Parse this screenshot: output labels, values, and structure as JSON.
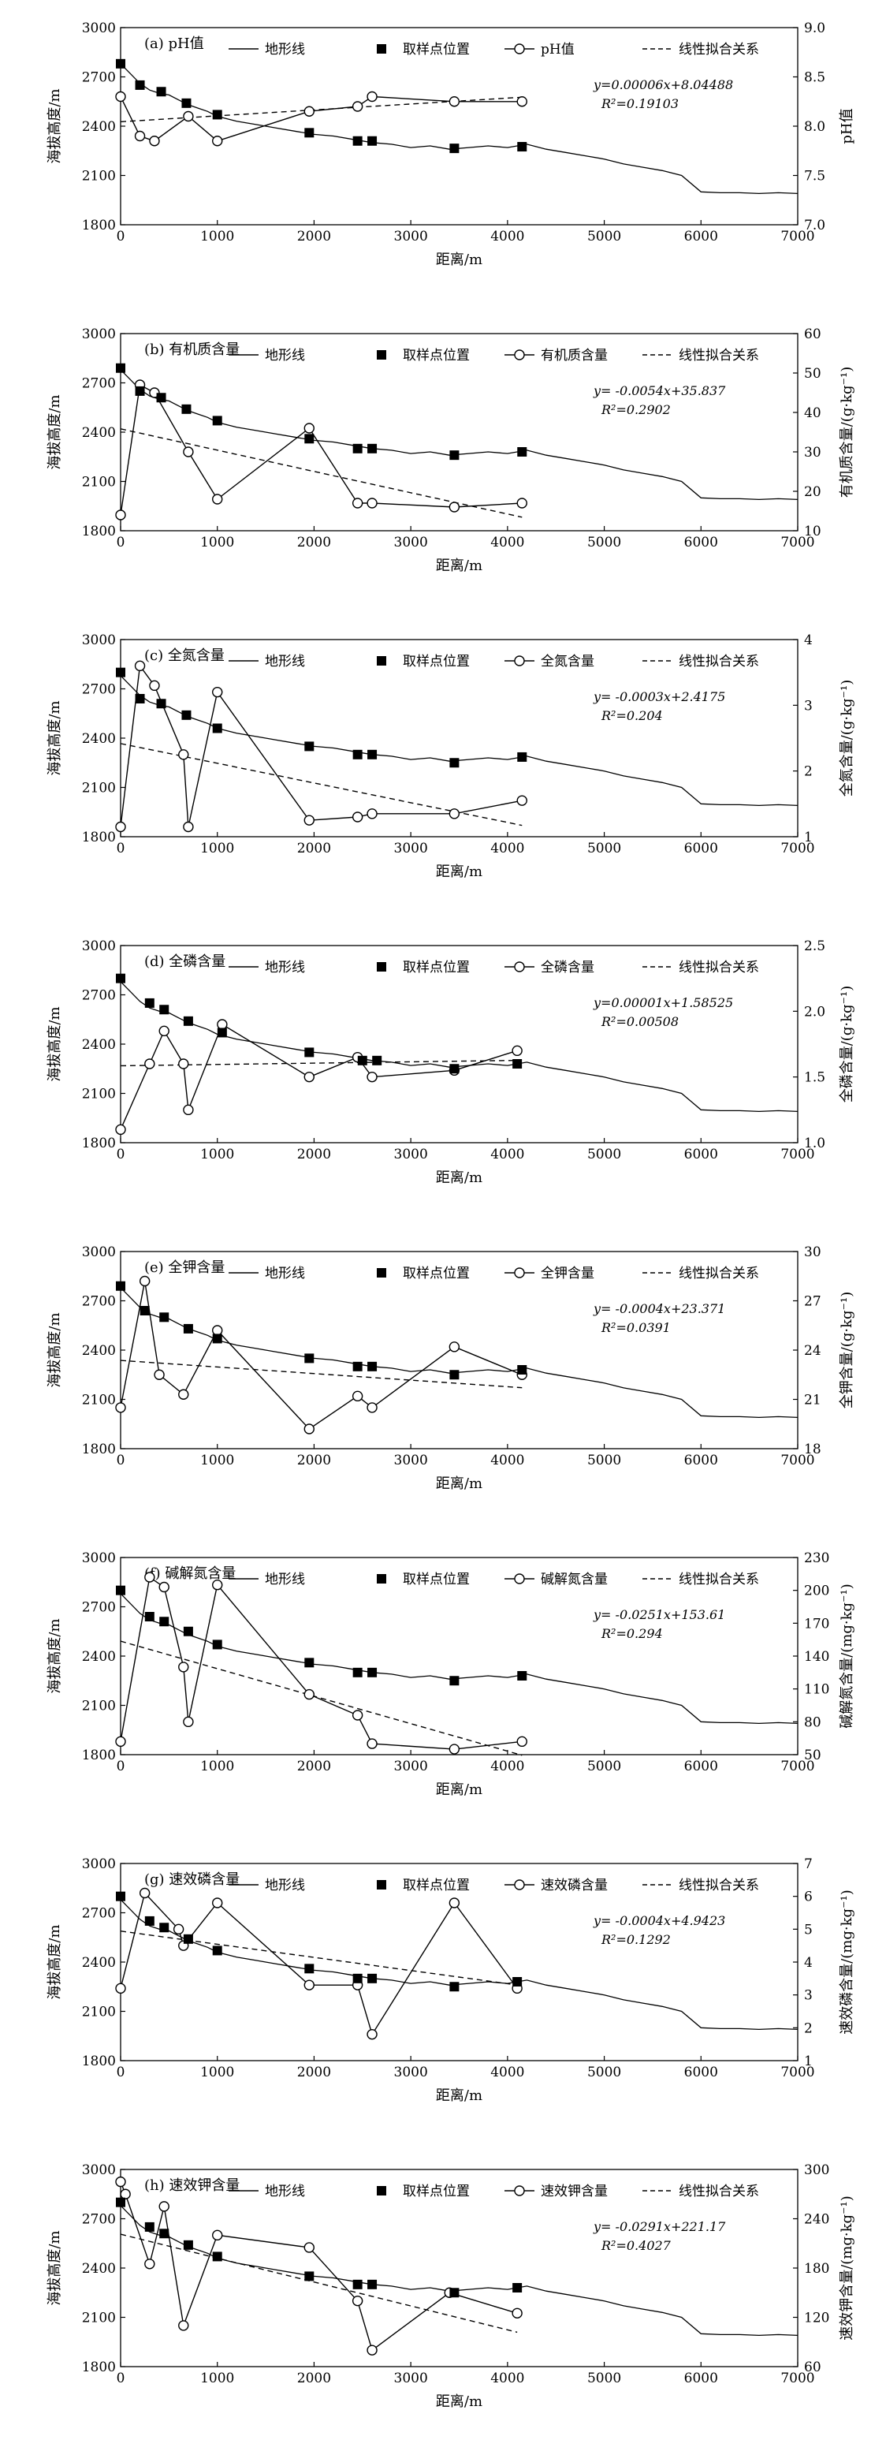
{
  "chart_data": [
    {
      "type": "line",
      "title": "(a) pH值",
      "xlabel": "距离/m",
      "ylabel_left": "海拔高度/m",
      "ylabel_right": "pH值",
      "xlim": [
        0,
        7000
      ],
      "xticks": [
        0,
        1000,
        2000,
        3000,
        4000,
        5000,
        6000,
        7000
      ],
      "ylim_left": [
        1800,
        3000
      ],
      "yticks_left": [
        1800,
        2100,
        2400,
        2700,
        3000
      ],
      "ylim_right": [
        7.0,
        9.0
      ],
      "yticks_right": [
        "7.0",
        "7.5",
        "8.0",
        "8.5",
        "9.0"
      ],
      "legend": [
        "地形线",
        "取样点位置",
        "pH值",
        "线性拟合关系"
      ],
      "equation": "y=0.00006x+8.04488",
      "r2": "R²=0.19103",
      "sampling_points": {
        "x": [
          0,
          200,
          420,
          680,
          1000,
          1950,
          2450,
          2600,
          3450,
          4150
        ],
        "y": [
          2780,
          2650,
          2610,
          2540,
          2470,
          2360,
          2310,
          2310,
          2265,
          2275
        ]
      },
      "measured": {
        "x": [
          0,
          200,
          350,
          700,
          1000,
          1950,
          2450,
          2600,
          3450,
          4150
        ],
        "y": [
          8.3,
          7.9,
          7.85,
          8.1,
          7.85,
          8.15,
          8.2,
          8.3,
          8.25,
          8.25
        ]
      },
      "fit": {
        "x": [
          0,
          4150
        ],
        "y": [
          8.04488,
          8.29388
        ]
      }
    },
    {
      "type": "line",
      "title": "(b) 有机质含量",
      "xlabel": "距离/m",
      "ylabel_left": "海拔高度/m",
      "ylabel_right": "有机质含量/(g·kg⁻¹)",
      "xlim": [
        0,
        7000
      ],
      "xticks": [
        0,
        1000,
        2000,
        3000,
        4000,
        5000,
        6000,
        7000
      ],
      "ylim_left": [
        1800,
        3000
      ],
      "yticks_left": [
        1800,
        2100,
        2400,
        2700,
        3000
      ],
      "ylim_right": [
        10,
        60
      ],
      "yticks_right": [
        "10",
        "20",
        "30",
        "40",
        "50",
        "60"
      ],
      "legend": [
        "地形线",
        "取样点位置",
        "有机质含量",
        "线性拟合关系"
      ],
      "equation": "y= -0.0054x+35.837",
      "r2": "R²=0.2902",
      "sampling_points": {
        "x": [
          0,
          200,
          420,
          680,
          1000,
          1950,
          2450,
          2600,
          3450,
          4150
        ],
        "y": [
          2790,
          2650,
          2610,
          2540,
          2470,
          2360,
          2300,
          2300,
          2260,
          2280
        ]
      },
      "measured": {
        "x": [
          0,
          200,
          350,
          700,
          1000,
          1950,
          2450,
          2600,
          3450,
          4150
        ],
        "y": [
          14,
          47,
          45,
          30,
          18,
          36,
          17,
          17,
          16,
          17
        ]
      },
      "fit": {
        "x": [
          0,
          4150
        ],
        "y": [
          35.837,
          13.427
        ]
      }
    },
    {
      "type": "line",
      "title": "(c) 全氮含量",
      "xlabel": "距离/m",
      "ylabel_left": "海拔高度/m",
      "ylabel_right": "全氮含量/(g·kg⁻¹)",
      "xlim": [
        0,
        7000
      ],
      "xticks": [
        0,
        1000,
        2000,
        3000,
        4000,
        5000,
        6000,
        7000
      ],
      "ylim_left": [
        1800,
        3000
      ],
      "yticks_left": [
        1800,
        2100,
        2400,
        2700,
        3000
      ],
      "ylim_right": [
        1,
        4
      ],
      "yticks_right": [
        "1",
        "2",
        "3",
        "4"
      ],
      "legend": [
        "地形线",
        "取样点位置",
        "全氮含量",
        "线性拟合关系"
      ],
      "equation": "y= -0.0003x+2.4175",
      "r2": "R²=0.204",
      "sampling_points": {
        "x": [
          0,
          200,
          420,
          680,
          1000,
          1950,
          2450,
          2600,
          3450,
          4150
        ],
        "y": [
          2800,
          2640,
          2610,
          2540,
          2460,
          2350,
          2300,
          2300,
          2250,
          2285
        ]
      },
      "measured": {
        "x": [
          0,
          200,
          350,
          650,
          700,
          1000,
          1950,
          2450,
          2600,
          3450,
          4150
        ],
        "y": [
          1.15,
          3.6,
          3.3,
          2.25,
          1.15,
          3.2,
          1.25,
          1.3,
          1.35,
          1.35,
          1.55
        ]
      },
      "fit": {
        "x": [
          0,
          4150
        ],
        "y": [
          2.4175,
          1.1725
        ]
      }
    },
    {
      "type": "line",
      "title": "(d) 全磷含量",
      "xlabel": "距离/m",
      "ylabel_left": "海拔高度/m",
      "ylabel_right": "全磷含量/(g·kg⁻¹)",
      "xlim": [
        0,
        7000
      ],
      "xticks": [
        0,
        1000,
        2000,
        3000,
        4000,
        5000,
        6000,
        7000
      ],
      "ylim_left": [
        1800,
        3000
      ],
      "yticks_left": [
        1800,
        2100,
        2400,
        2700,
        3000
      ],
      "ylim_right": [
        1.0,
        2.5
      ],
      "yticks_right": [
        "1.0",
        "1.5",
        "2.0",
        "2.5"
      ],
      "legend": [
        "地形线",
        "取样点位置",
        "全磷含量",
        "线性拟合关系"
      ],
      "equation": "y=0.00001x+1.58525",
      "r2": "R²=0.00508",
      "sampling_points": {
        "x": [
          0,
          300,
          450,
          700,
          1050,
          1950,
          2500,
          2650,
          3450,
          4100
        ],
        "y": [
          2800,
          2650,
          2610,
          2540,
          2470,
          2350,
          2300,
          2300,
          2250,
          2280
        ]
      },
      "measured": {
        "x": [
          0,
          300,
          450,
          650,
          700,
          1050,
          1950,
          2450,
          2600,
          3450,
          4100
        ],
        "y": [
          1.1,
          1.6,
          1.85,
          1.6,
          1.25,
          1.9,
          1.5,
          1.65,
          1.5,
          1.55,
          1.7
        ]
      },
      "fit": {
        "x": [
          0,
          4100
        ],
        "y": [
          1.58525,
          1.62625
        ]
      }
    },
    {
      "type": "line",
      "title": "(e) 全钾含量",
      "xlabel": "距离/m",
      "ylabel_left": "海拔高度/m",
      "ylabel_right": "全钾含量/(g·kg⁻¹)",
      "xlim": [
        0,
        7000
      ],
      "xticks": [
        0,
        1000,
        2000,
        3000,
        4000,
        5000,
        6000,
        7000
      ],
      "ylim_left": [
        1800,
        3000
      ],
      "yticks_left": [
        1800,
        2100,
        2400,
        2700,
        3000
      ],
      "ylim_right": [
        18,
        30
      ],
      "yticks_right": [
        "18",
        "21",
        "24",
        "27",
        "30"
      ],
      "legend": [
        "地形线",
        "取样点位置",
        "全钾含量",
        "线性拟合关系"
      ],
      "equation": "y= -0.0004x+23.371",
      "r2": "R²=0.0391",
      "sampling_points": {
        "x": [
          0,
          250,
          450,
          700,
          1000,
          1950,
          2450,
          2600,
          3450,
          4150
        ],
        "y": [
          2790,
          2640,
          2600,
          2530,
          2470,
          2350,
          2300,
          2300,
          2250,
          2280
        ]
      },
      "measured": {
        "x": [
          0,
          250,
          400,
          650,
          1000,
          1950,
          2450,
          2600,
          3450,
          4150
        ],
        "y": [
          20.5,
          28.2,
          22.5,
          21.3,
          25.2,
          19.2,
          21.2,
          20.5,
          24.2,
          22.5
        ]
      },
      "fit": {
        "x": [
          0,
          4150
        ],
        "y": [
          23.371,
          21.711
        ]
      }
    },
    {
      "type": "line",
      "title": "(f) 碱解氮含量",
      "xlabel": "距离/m",
      "ylabel_left": "海拔高度/m",
      "ylabel_right": "碱解氮含量/(mg·kg⁻¹)",
      "xlim": [
        0,
        7000
      ],
      "xticks": [
        0,
        1000,
        2000,
        3000,
        4000,
        5000,
        6000,
        7000
      ],
      "ylim_left": [
        1800,
        3000
      ],
      "yticks_left": [
        1800,
        2100,
        2400,
        2700,
        3000
      ],
      "ylim_right": [
        50,
        230
      ],
      "yticks_right": [
        "50",
        "80",
        "110",
        "140",
        "170",
        "200",
        "230"
      ],
      "legend": [
        "地形线",
        "取样点位置",
        "碱解氮含量",
        "线性拟合关系"
      ],
      "equation": "y= -0.0251x+153.61",
      "r2": "R²=0.294",
      "sampling_points": {
        "x": [
          0,
          300,
          450,
          700,
          1000,
          1950,
          2450,
          2600,
          3450,
          4150
        ],
        "y": [
          2800,
          2640,
          2610,
          2550,
          2470,
          2360,
          2300,
          2300,
          2250,
          2280
        ]
      },
      "measured": {
        "x": [
          0,
          300,
          450,
          650,
          700,
          1000,
          1950,
          2450,
          2600,
          3450,
          4150
        ],
        "y": [
          62,
          212,
          203,
          130,
          80,
          205,
          105,
          86,
          60,
          55,
          62
        ]
      },
      "fit": {
        "x": [
          0,
          4150
        ],
        "y": [
          153.61,
          49.44
        ]
      }
    },
    {
      "type": "line",
      "title": "(g) 速效磷含量",
      "xlabel": "距离/m",
      "ylabel_left": "海拔高度/m",
      "ylabel_right": "速效磷含量/(mg·kg⁻¹)",
      "xlim": [
        0,
        7000
      ],
      "xticks": [
        0,
        1000,
        2000,
        3000,
        4000,
        5000,
        6000,
        7000
      ],
      "ylim_left": [
        1800,
        3000
      ],
      "yticks_left": [
        1800,
        2100,
        2400,
        2700,
        3000
      ],
      "ylim_right": [
        1,
        7
      ],
      "yticks_right": [
        "1",
        "2",
        "3",
        "4",
        "5",
        "6",
        "7"
      ],
      "legend": [
        "地形线",
        "取样点位置",
        "速效磷含量",
        "线性拟合关系"
      ],
      "equation": "y= -0.0004x+4.9423",
      "r2": "R²=0.1292",
      "sampling_points": {
        "x": [
          0,
          300,
          450,
          700,
          1000,
          1950,
          2450,
          2600,
          3450,
          4100
        ],
        "y": [
          2800,
          2650,
          2610,
          2540,
          2470,
          2360,
          2300,
          2300,
          2250,
          2280
        ]
      },
      "measured": {
        "x": [
          0,
          250,
          600,
          650,
          1000,
          1950,
          2450,
          2600,
          3450,
          4100
        ],
        "y": [
          3.2,
          6.1,
          5.0,
          4.5,
          5.8,
          3.3,
          3.3,
          1.8,
          5.8,
          3.2
        ]
      },
      "fit": {
        "x": [
          0,
          4100
        ],
        "y": [
          4.9423,
          3.3023
        ]
      }
    },
    {
      "type": "line",
      "title": "(h) 速效钾含量",
      "xlabel": "距离/m",
      "ylabel_left": "海拔高度/m",
      "ylabel_right": "速效钾含量/(mg·kg⁻¹)",
      "xlim": [
        0,
        7000
      ],
      "xticks": [
        0,
        1000,
        2000,
        3000,
        4000,
        5000,
        6000,
        7000
      ],
      "ylim_left": [
        1800,
        3000
      ],
      "yticks_left": [
        1800,
        2100,
        2400,
        2700,
        3000
      ],
      "ylim_right": [
        60,
        300
      ],
      "yticks_right": [
        "60",
        "120",
        "180",
        "240",
        "300"
      ],
      "legend": [
        "地形线",
        "取样点位置",
        "速效钾含量",
        "线性拟合关系"
      ],
      "equation": "y= -0.0291x+221.17",
      "r2": "R²=0.4027",
      "sampling_points": {
        "x": [
          0,
          300,
          450,
          700,
          1000,
          1950,
          2450,
          2600,
          3450,
          4100
        ],
        "y": [
          2800,
          2650,
          2610,
          2540,
          2470,
          2350,
          2300,
          2300,
          2250,
          2280
        ]
      },
      "measured": {
        "x": [
          0,
          50,
          300,
          450,
          650,
          1000,
          1950,
          2450,
          2600,
          3400,
          4100
        ],
        "y": [
          285,
          270,
          185,
          255,
          110,
          220,
          205,
          140,
          80,
          150,
          125
        ]
      },
      "fit": {
        "x": [
          0,
          4100
        ],
        "y": [
          221.17,
          101.86
        ]
      }
    }
  ],
  "terrain_profile": {
    "x": [
      0,
      100,
      200,
      300,
      400,
      500,
      600,
      700,
      800,
      900,
      1000,
      1200,
      1400,
      1600,
      1800,
      2000,
      2200,
      2400,
      2600,
      2800,
      3000,
      3200,
      3400,
      3600,
      3800,
      4000,
      4200,
      4400,
      4600,
      4800,
      5000,
      5200,
      5400,
      5600,
      5800,
      6000,
      6200,
      6400,
      6600,
      6800,
      7000
    ],
    "y": [
      2780,
      2720,
      2660,
      2620,
      2600,
      2590,
      2560,
      2530,
      2510,
      2490,
      2460,
      2430,
      2410,
      2390,
      2370,
      2350,
      2340,
      2320,
      2300,
      2290,
      2270,
      2280,
      2260,
      2270,
      2280,
      2270,
      2290,
      2260,
      2240,
      2220,
      2200,
      2170,
      2150,
      2130,
      2100,
      2000,
      1995,
      1995,
      1990,
      1995,
      1990
    ]
  }
}
